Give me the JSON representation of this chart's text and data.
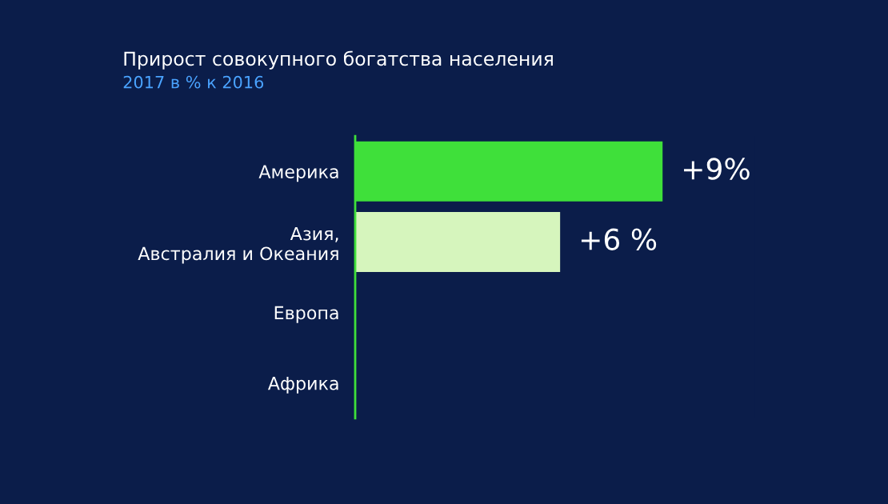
{
  "chart_data": {
    "type": "bar",
    "orientation": "horizontal",
    "title": "Прирост совокупного богатства населения",
    "subtitle": "2017 в % к 2016",
    "categories": [
      "Америка",
      "Азия,\nАвстралия и Океания",
      "Европа",
      "Африка"
    ],
    "values": [
      9,
      6,
      null,
      null
    ],
    "colors": [
      "#3fe03a",
      "#d6f5bd",
      "#3fe03a",
      "#3fe03a"
    ],
    "value_labels": [
      "+9%",
      "+6 %",
      null,
      null
    ],
    "grid": false,
    "legend": false
  }
}
